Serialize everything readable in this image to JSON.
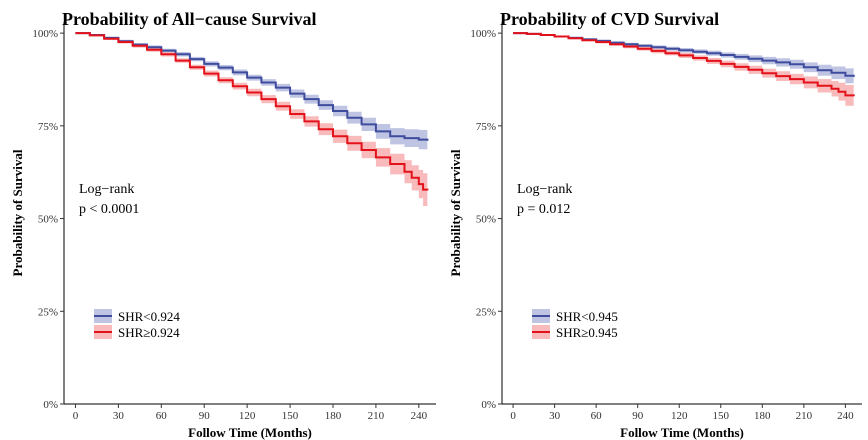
{
  "chart_data": [
    {
      "type": "line",
      "title": "Probability of All−cause Survival",
      "xlabel": "Follow Time (Months)",
      "ylabel": "Probability of Survival",
      "xlim": [
        -8,
        252
      ],
      "ylim": [
        0,
        1.03
      ],
      "xticks": [
        0,
        30,
        60,
        90,
        120,
        150,
        180,
        210,
        240
      ],
      "yticks": [
        0,
        0.25,
        0.5,
        0.75,
        1.0
      ],
      "ytick_labels": [
        "0%",
        "25%",
        "50%",
        "75%",
        "100%"
      ],
      "x_tick_labels": [
        "0",
        "30",
        "60",
        "90",
        "120",
        "150",
        "180",
        "210",
        "240"
      ],
      "annotation": [
        "Log−rank",
        "p < 0.0001"
      ],
      "legend": "bottom-left",
      "grid": false,
      "series": [
        {
          "name": "SHR<0.924",
          "color": "#3F4C9E",
          "band_color": "#A9B0DA",
          "x": [
            0,
            10,
            20,
            30,
            40,
            50,
            60,
            70,
            80,
            90,
            100,
            110,
            120,
            130,
            140,
            150,
            160,
            170,
            180,
            190,
            200,
            210,
            220,
            230,
            240,
            246
          ],
          "y": [
            1.0,
            0.995,
            0.987,
            0.978,
            0.969,
            0.962,
            0.953,
            0.943,
            0.93,
            0.917,
            0.907,
            0.894,
            0.88,
            0.867,
            0.853,
            0.837,
            0.822,
            0.806,
            0.79,
            0.772,
            0.754,
            0.735,
            0.722,
            0.717,
            0.713,
            0.71
          ],
          "ci_halfwidth": [
            0,
            0.002,
            0.003,
            0.004,
            0.004,
            0.005,
            0.005,
            0.006,
            0.006,
            0.007,
            0.007,
            0.008,
            0.008,
            0.009,
            0.01,
            0.011,
            0.012,
            0.013,
            0.014,
            0.016,
            0.018,
            0.02,
            0.022,
            0.024,
            0.026,
            0.028
          ]
        },
        {
          "name": "SHR≥0.924",
          "color": "#E3111A",
          "band_color": "#F6A3A3",
          "x": [
            0,
            10,
            20,
            30,
            40,
            50,
            60,
            70,
            80,
            90,
            100,
            110,
            120,
            130,
            140,
            150,
            160,
            170,
            180,
            190,
            200,
            210,
            220,
            230,
            235,
            240,
            243,
            246
          ],
          "y": [
            1.0,
            0.994,
            0.985,
            0.976,
            0.966,
            0.955,
            0.943,
            0.926,
            0.908,
            0.891,
            0.873,
            0.857,
            0.84,
            0.822,
            0.803,
            0.782,
            0.762,
            0.741,
            0.722,
            0.703,
            0.685,
            0.665,
            0.647,
            0.626,
            0.61,
            0.593,
            0.578,
            0.576
          ],
          "ci_halfwidth": [
            0,
            0.002,
            0.003,
            0.004,
            0.005,
            0.005,
            0.006,
            0.006,
            0.007,
            0.008,
            0.008,
            0.009,
            0.01,
            0.011,
            0.012,
            0.013,
            0.014,
            0.016,
            0.018,
            0.02,
            0.022,
            0.025,
            0.028,
            0.031,
            0.034,
            0.038,
            0.044,
            0.05
          ]
        }
      ]
    },
    {
      "type": "line",
      "title": "Probability of CVD Survival",
      "xlabel": "Follow Time (Months)",
      "ylabel": "Probability of Survival",
      "xlim": [
        -8,
        252
      ],
      "ylim": [
        0,
        1.03
      ],
      "xticks": [
        0,
        30,
        60,
        90,
        120,
        150,
        180,
        210,
        240
      ],
      "yticks": [
        0,
        0.25,
        0.5,
        0.75,
        1.0
      ],
      "ytick_labels": [
        "0%",
        "25%",
        "50%",
        "75%",
        "100%"
      ],
      "x_tick_labels": [
        "0",
        "30",
        "60",
        "90",
        "120",
        "150",
        "180",
        "210",
        "240"
      ],
      "annotation": [
        "Log−rank",
        "p = 0.012"
      ],
      "legend": "bottom-left",
      "grid": false,
      "series": [
        {
          "name": "SHR<0.945",
          "color": "#3F4C9E",
          "band_color": "#A9B0DA",
          "x": [
            0,
            10,
            20,
            30,
            40,
            50,
            60,
            70,
            80,
            90,
            100,
            110,
            120,
            130,
            140,
            150,
            160,
            170,
            180,
            190,
            200,
            210,
            220,
            230,
            240,
            246
          ],
          "y": [
            1.0,
            0.998,
            0.995,
            0.991,
            0.987,
            0.983,
            0.979,
            0.974,
            0.97,
            0.966,
            0.962,
            0.958,
            0.954,
            0.95,
            0.946,
            0.941,
            0.936,
            0.931,
            0.926,
            0.921,
            0.916,
            0.908,
            0.9,
            0.893,
            0.885,
            0.882
          ],
          "ci_halfwidth": [
            0,
            0.001,
            0.002,
            0.002,
            0.003,
            0.003,
            0.003,
            0.004,
            0.004,
            0.004,
            0.005,
            0.005,
            0.006,
            0.006,
            0.007,
            0.007,
            0.008,
            0.009,
            0.01,
            0.011,
            0.012,
            0.013,
            0.015,
            0.017,
            0.02,
            0.022
          ]
        },
        {
          "name": "SHR≥0.945",
          "color": "#E3111A",
          "band_color": "#F6A3A3",
          "x": [
            0,
            10,
            20,
            30,
            40,
            50,
            60,
            70,
            80,
            90,
            100,
            110,
            120,
            130,
            140,
            150,
            160,
            170,
            180,
            190,
            200,
            210,
            220,
            230,
            235,
            240,
            246
          ],
          "y": [
            1.0,
            0.998,
            0.995,
            0.991,
            0.986,
            0.981,
            0.976,
            0.97,
            0.964,
            0.958,
            0.952,
            0.946,
            0.94,
            0.933,
            0.925,
            0.917,
            0.909,
            0.901,
            0.892,
            0.884,
            0.876,
            0.867,
            0.858,
            0.85,
            0.842,
            0.832,
            0.83
          ],
          "ci_halfwidth": [
            0,
            0.001,
            0.002,
            0.002,
            0.003,
            0.003,
            0.004,
            0.004,
            0.005,
            0.005,
            0.006,
            0.006,
            0.007,
            0.007,
            0.008,
            0.009,
            0.01,
            0.011,
            0.012,
            0.013,
            0.014,
            0.016,
            0.018,
            0.021,
            0.024,
            0.028,
            0.032
          ]
        }
      ]
    }
  ]
}
